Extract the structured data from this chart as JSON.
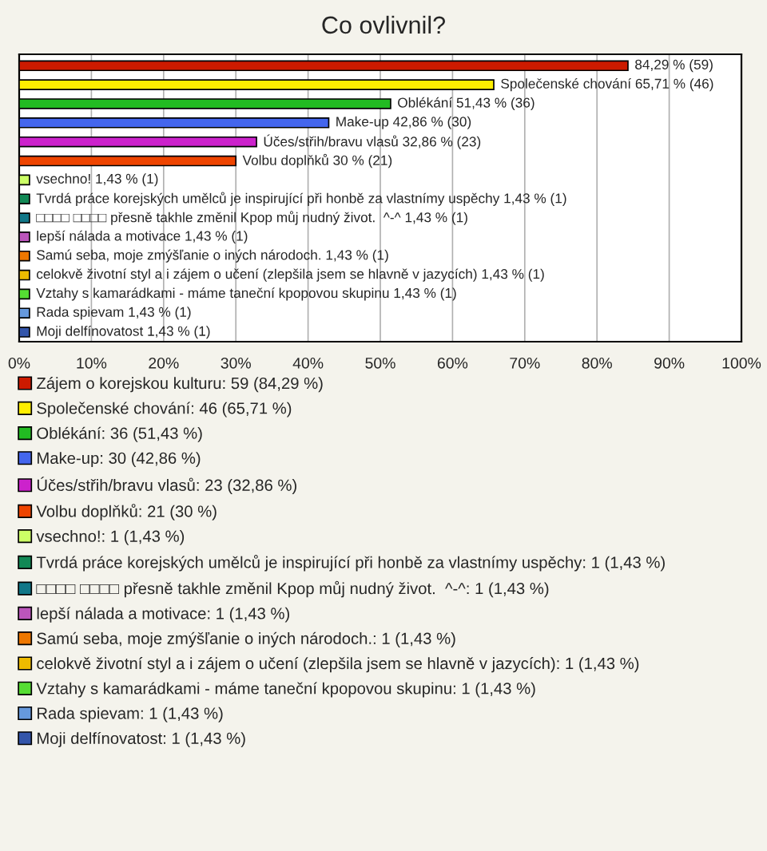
{
  "chart_data": {
    "type": "bar",
    "title": "Co ovlivnil?",
    "orientation": "horizontal",
    "categories": [
      null,
      null,
      null,
      null,
      null,
      null,
      null,
      null,
      null,
      null,
      null,
      null,
      null,
      null,
      null
    ],
    "series": [
      {
        "name": "Zájem o korejskou kulturu: 59 (84,29 %)",
        "color": "#cc1a00",
        "values": [
          84.29,
          null,
          null,
          null,
          null,
          null,
          null,
          null,
          null,
          null,
          null,
          null,
          null,
          null,
          null
        ],
        "value_labels": [
          "84,29 % (59)",
          null,
          null,
          null,
          null,
          null,
          null,
          null,
          null,
          null,
          null,
          null,
          null,
          null,
          null
        ]
      },
      {
        "name": "Společenské chování: 46 (65,71 %)",
        "color": "#ffee00",
        "values": [
          null,
          65.71,
          null,
          null,
          null,
          null,
          null,
          null,
          null,
          null,
          null,
          null,
          null,
          null,
          null
        ],
        "value_labels": [
          null,
          "Společenské chování 65,71 % (46)",
          null,
          null,
          null,
          null,
          null,
          null,
          null,
          null,
          null,
          null,
          null,
          null,
          null
        ]
      },
      {
        "name": "Oblékání: 36 (51,43 %)",
        "color": "#22bb22",
        "values": [
          null,
          null,
          51.43,
          null,
          null,
          null,
          null,
          null,
          null,
          null,
          null,
          null,
          null,
          null,
          null
        ],
        "value_labels": [
          null,
          null,
          "Oblékání 51,43 % (36)",
          null,
          null,
          null,
          null,
          null,
          null,
          null,
          null,
          null,
          null,
          null,
          null
        ]
      },
      {
        "name": "Make-up: 30 (42,86 %)",
        "color": "#4466ee",
        "values": [
          null,
          null,
          null,
          42.86,
          null,
          null,
          null,
          null,
          null,
          null,
          null,
          null,
          null,
          null,
          null
        ],
        "value_labels": [
          null,
          null,
          null,
          "Make-up 42,86 % (30)",
          null,
          null,
          null,
          null,
          null,
          null,
          null,
          null,
          null,
          null,
          null
        ]
      },
      {
        "name": "Účes/střih/bravu vlasů: 23 (32,86 %)",
        "color": "#cc22cc",
        "values": [
          null,
          null,
          null,
          null,
          32.86,
          null,
          null,
          null,
          null,
          null,
          null,
          null,
          null,
          null,
          null
        ],
        "value_labels": [
          null,
          null,
          null,
          null,
          "Účes/střih/bravu vlasů 32,86 % (23)",
          null,
          null,
          null,
          null,
          null,
          null,
          null,
          null,
          null,
          null
        ]
      },
      {
        "name": "Volbu doplňků: 21 (30 %)",
        "color": "#ee4400",
        "values": [
          null,
          null,
          null,
          null,
          null,
          30,
          null,
          null,
          null,
          null,
          null,
          null,
          null,
          null,
          null
        ],
        "value_labels": [
          null,
          null,
          null,
          null,
          null,
          "Volbu doplňků 30 % (21)",
          null,
          null,
          null,
          null,
          null,
          null,
          null,
          null,
          null
        ]
      },
      {
        "name": "vsechno!: 1 (1,43 %)",
        "color": "#ccff66",
        "values": [
          null,
          null,
          null,
          null,
          null,
          null,
          1.43,
          null,
          null,
          null,
          null,
          null,
          null,
          null,
          null
        ],
        "value_labels": [
          null,
          null,
          null,
          null,
          null,
          null,
          "vsechno! 1,43 % (1)",
          null,
          null,
          null,
          null,
          null,
          null,
          null,
          null
        ]
      },
      {
        "name": "Tvrdá práce korejských umělců je inspirující při honbě za vlastnímy uspěchy: 1 (1,43 %)",
        "color": "#118855",
        "values": [
          null,
          null,
          null,
          null,
          null,
          null,
          null,
          1.43,
          null,
          null,
          null,
          null,
          null,
          null,
          null
        ],
        "value_labels": [
          null,
          null,
          null,
          null,
          null,
          null,
          null,
          "Tvrdá práce korejských umělců je inspirující při honbě za vlastnímy uspěchy 1,43 % (1)",
          null,
          null,
          null,
          null,
          null,
          null,
          null
        ]
      },
      {
        "name": "□□□□ □□□□ přesně takhle změnil Kpop můj nudný život.  ^-^: 1 (1,43 %)",
        "color": "#117788",
        "values": [
          null,
          null,
          null,
          null,
          null,
          null,
          null,
          null,
          1.43,
          null,
          null,
          null,
          null,
          null,
          null
        ],
        "value_labels": [
          null,
          null,
          null,
          null,
          null,
          null,
          null,
          null,
          "□□□□ □□□□ přesně takhle změnil Kpop můj nudný život.  ^-^ 1,43 % (1)",
          null,
          null,
          null,
          null,
          null,
          null
        ]
      },
      {
        "name": "lepší nálada a motivace: 1 (1,43 %)",
        "color": "#bb55bb",
        "values": [
          null,
          null,
          null,
          null,
          null,
          null,
          null,
          null,
          null,
          1.43,
          null,
          null,
          null,
          null,
          null
        ],
        "value_labels": [
          null,
          null,
          null,
          null,
          null,
          null,
          null,
          null,
          null,
          "lepší nálada a motivace 1,43 % (1)",
          null,
          null,
          null,
          null,
          null
        ]
      },
      {
        "name": "Samú seba, moje zmýšľanie o iných národoch.: 1 (1,43 %)",
        "color": "#ee7700",
        "values": [
          null,
          null,
          null,
          null,
          null,
          null,
          null,
          null,
          null,
          null,
          1.43,
          null,
          null,
          null,
          null
        ],
        "value_labels": [
          null,
          null,
          null,
          null,
          null,
          null,
          null,
          null,
          null,
          null,
          "Samú seba, moje zmýšľanie o iných národoch. 1,43 % (1)",
          null,
          null,
          null,
          null
        ]
      },
      {
        "name": "celokvě životní styl a i zájem o učení (zlepšila jsem se hlavně v jazycích): 1 (1,43 %)",
        "color": "#eebb00",
        "values": [
          null,
          null,
          null,
          null,
          null,
          null,
          null,
          null,
          null,
          null,
          null,
          1.43,
          null,
          null,
          null
        ],
        "value_labels": [
          null,
          null,
          null,
          null,
          null,
          null,
          null,
          null,
          null,
          null,
          null,
          "celokvě životní styl a i zájem o učení (zlepšila jsem se hlavně v jazycích) 1,43 % (1)",
          null,
          null,
          null
        ]
      },
      {
        "name": "Vztahy s kamarádkami - máme taneční kpopovou skupinu: 1 (1,43 %)",
        "color": "#55dd33",
        "values": [
          null,
          null,
          null,
          null,
          null,
          null,
          null,
          null,
          null,
          null,
          null,
          null,
          1.43,
          null,
          null
        ],
        "value_labels": [
          null,
          null,
          null,
          null,
          null,
          null,
          null,
          null,
          null,
          null,
          null,
          null,
          "Vztahy s kamarádkami - máme taneční kpopovou skupinu 1,43 % (1)",
          null,
          null
        ]
      },
      {
        "name": "Rada spievam: 1 (1,43 %)",
        "color": "#6699dd",
        "values": [
          null,
          null,
          null,
          null,
          null,
          null,
          null,
          null,
          null,
          null,
          null,
          null,
          null,
          1.43,
          null
        ],
        "value_labels": [
          null,
          null,
          null,
          null,
          null,
          null,
          null,
          null,
          null,
          null,
          null,
          null,
          null,
          "Rada spievam 1,43 % (1)",
          null
        ]
      },
      {
        "name": "Moji delfínovatost: 1 (1,43 %)",
        "color": "#3355aa",
        "values": [
          null,
          null,
          null,
          null,
          null,
          null,
          null,
          null,
          null,
          null,
          null,
          null,
          null,
          null,
          1.43
        ],
        "value_labels": [
          null,
          null,
          null,
          null,
          null,
          null,
          null,
          null,
          null,
          null,
          null,
          null,
          null,
          null,
          "Moji delfínovatost 1,43 % (1)"
        ]
      }
    ],
    "xlim": [
      0,
      100
    ],
    "xticks": [
      {
        "value": 0,
        "label": "0%"
      },
      {
        "value": 10,
        "label": "10%"
      },
      {
        "value": 20,
        "label": "20%"
      },
      {
        "value": 30,
        "label": "30%"
      },
      {
        "value": 40,
        "label": "40%"
      },
      {
        "value": 50,
        "label": "50%"
      },
      {
        "value": 60,
        "label": "60%"
      },
      {
        "value": 70,
        "label": "70%"
      },
      {
        "value": 80,
        "label": "80%"
      },
      {
        "value": 90,
        "label": "90%"
      },
      {
        "value": 100,
        "label": "100%"
      }
    ],
    "grid": "x",
    "legend": "bottom"
  }
}
